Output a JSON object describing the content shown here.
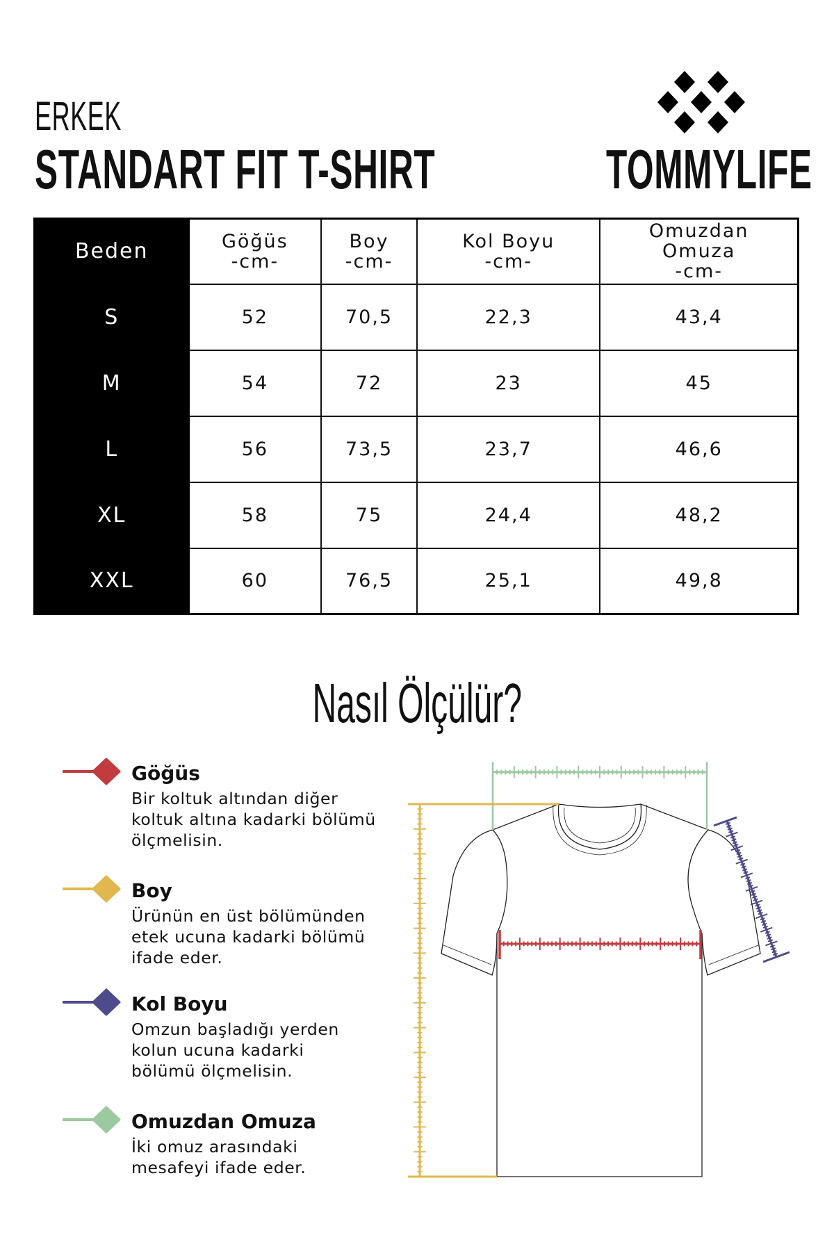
{
  "header": {
    "kicker": "ERKEK",
    "title": "STANDART FIT T-SHIRT",
    "brand": "TOMMYLIFE",
    "logo_icon": "diamond-cluster-logo"
  },
  "size_table": {
    "columns": [
      {
        "label": "Beden",
        "unit": ""
      },
      {
        "label": "Göğüs",
        "unit": "-cm-"
      },
      {
        "label": "Boy",
        "unit": "-cm-"
      },
      {
        "label": "Kol Boyu",
        "unit": "-cm-"
      },
      {
        "label": "Omuzdan Omuza",
        "label_lines": [
          "Omuzdan",
          "Omuza"
        ],
        "unit": "-cm-"
      }
    ],
    "rows": [
      {
        "size": "S",
        "gogus": "52",
        "boy": "70,5",
        "kol_boyu": "22,3",
        "omuz": "43,4"
      },
      {
        "size": "M",
        "gogus": "54",
        "boy": "72",
        "kol_boyu": "23",
        "omuz": "45"
      },
      {
        "size": "L",
        "gogus": "56",
        "boy": "73,5",
        "kol_boyu": "23,7",
        "omuz": "46,6"
      },
      {
        "size": "XL",
        "gogus": "58",
        "boy": "75",
        "kol_boyu": "24,4",
        "omuz": "48,2"
      },
      {
        "size": "XXL",
        "gogus": "60",
        "boy": "76,5",
        "kol_boyu": "25,1",
        "omuz": "49,8"
      }
    ]
  },
  "how_to": {
    "title": "Nasıl Ölçülür?",
    "items": [
      {
        "title": "Göğüs",
        "lines": [
          "Bir koltuk altından diğer",
          "koltuk altına kadarki bölümü",
          "ölçmelisin."
        ],
        "color": "#c23b3f"
      },
      {
        "title": "Boy",
        "lines": [
          "Ürünün en üst bölümünden",
          "etek ucuna kadarki bölümü",
          "ifade eder."
        ],
        "color": "#e0b84e"
      },
      {
        "title": "Kol Boyu",
        "lines": [
          "Omzun başladığı yerden",
          "kolun ucuna kadarki",
          "bölümü ölçmelisin."
        ],
        "color": "#4f4a8c"
      },
      {
        "title": "Omuzdan Omuza",
        "lines": [
          "İki omuz arasındaki",
          "mesafeyi ifade eder."
        ],
        "color": "#9cc9a0"
      }
    ]
  }
}
